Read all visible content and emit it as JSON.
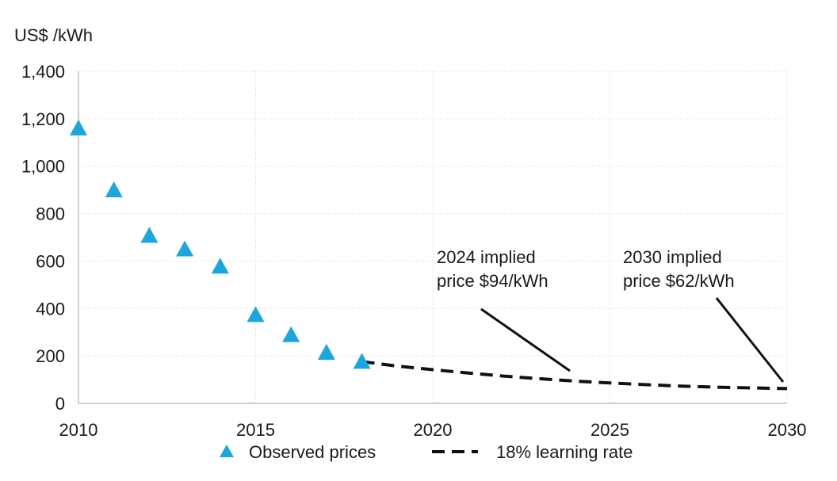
{
  "chart_data": {
    "type": "scatter",
    "ylabel": "US$ /kWh",
    "xlim": [
      2010,
      2030
    ],
    "ylim": [
      0,
      1400
    ],
    "x_ticks": [
      2010,
      2015,
      2020,
      2025,
      2030
    ],
    "y_ticks": [
      0,
      200,
      400,
      600,
      800,
      1000,
      1200,
      1400
    ],
    "y_tick_labels": [
      "0",
      "200",
      "400",
      "600",
      "800",
      "1,000",
      "1,200",
      "1,400"
    ],
    "grid": true,
    "legend_position": "bottom",
    "series": [
      {
        "name": "Observed prices",
        "kind": "scatter",
        "marker": "triangle",
        "color": "#1BA7DE",
        "x": [
          2010,
          2011,
          2012,
          2013,
          2014,
          2015,
          2016,
          2017,
          2018
        ],
        "y": [
          1160,
          899,
          707,
          650,
          577,
          373,
          288,
          214,
          176
        ]
      },
      {
        "name": "18% learning rate",
        "kind": "line",
        "style": "dashed",
        "color": "#111111",
        "x": [
          2018,
          2019,
          2020,
          2021,
          2022,
          2023,
          2024,
          2025,
          2026,
          2027,
          2028,
          2029,
          2030
        ],
        "y": [
          176,
          157,
          142,
          128,
          115,
          104,
          94,
          86,
          79,
          73,
          68,
          65,
          62
        ]
      }
    ],
    "annotations": [
      {
        "lines": [
          "2024 implied",
          "price $94/kWh"
        ],
        "target_x": 2024,
        "target_y": 94
      },
      {
        "lines": [
          "2030 implied",
          "price $62/kWh"
        ],
        "target_x": 2030,
        "target_y": 62
      }
    ]
  }
}
